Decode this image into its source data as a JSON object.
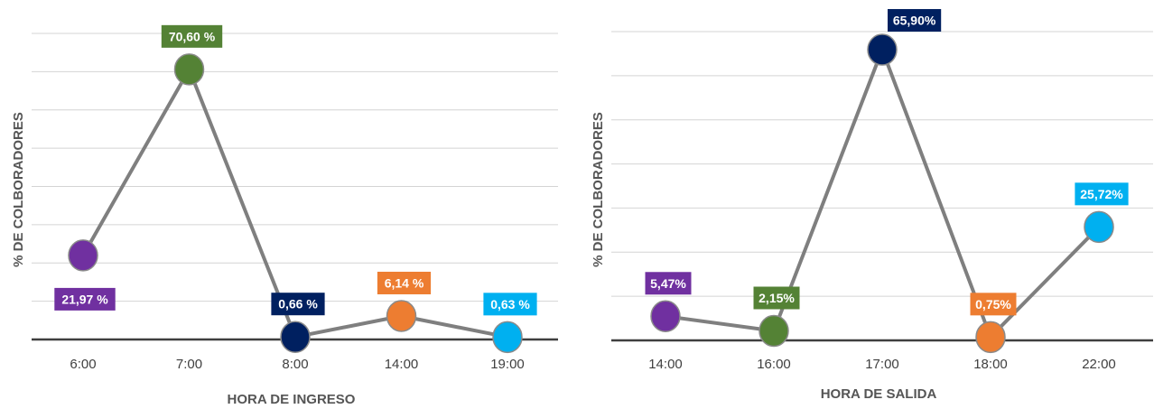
{
  "chart_data": [
    {
      "type": "line",
      "xlabel": "HORA DE INGRESO",
      "ylabel": "% DE COLBORADORES",
      "categories": [
        "6:00",
        "7:00",
        "8:00",
        "14:00",
        "19:00"
      ],
      "values": [
        21.97,
        70.6,
        0.66,
        6.14,
        0.63
      ],
      "data_labels": [
        "21,97 %",
        "70,60 %",
        "0,66 %",
        "6,14 %",
        "0,63 %"
      ],
      "point_colors": [
        "#7030a0",
        "#548235",
        "#002060",
        "#ed7d31",
        "#00b0f0"
      ],
      "line_color": "#7f7f7f",
      "ylim": [
        0,
        80
      ],
      "grid": true
    },
    {
      "type": "line",
      "xlabel": "HORA DE SALIDA",
      "ylabel": "% DE COLBORADORES",
      "categories": [
        "14:00",
        "16:00",
        "17:00",
        "18:00",
        "22:00"
      ],
      "values": [
        5.47,
        2.15,
        65.9,
        0.75,
        25.72
      ],
      "data_labels": [
        "5,47%",
        "2,15%",
        "65,90%",
        "0,75%",
        "25,72%"
      ],
      "point_colors": [
        "#7030a0",
        "#548235",
        "#002060",
        "#ed7d31",
        "#00b0f0"
      ],
      "line_color": "#7f7f7f",
      "ylim": [
        0,
        70
      ],
      "grid": true
    }
  ]
}
